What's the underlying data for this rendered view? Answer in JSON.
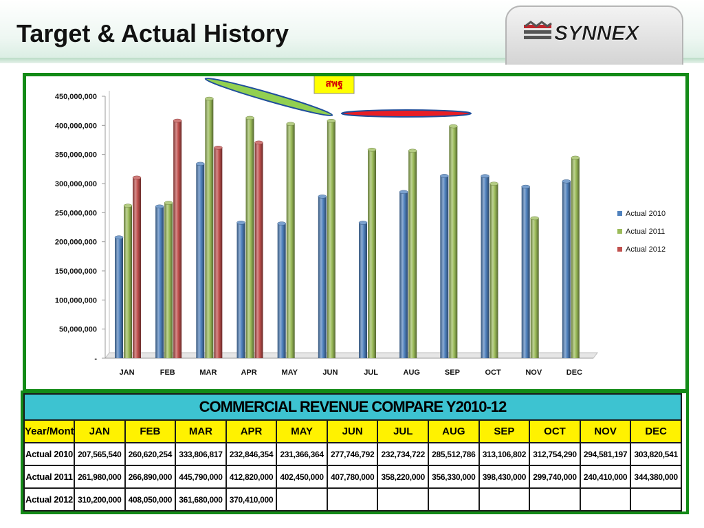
{
  "page": {
    "title": "Target & Actual History",
    "logo_text": "SYNNEX"
  },
  "chart_data": {
    "type": "bar",
    "annotation": "สพฐ",
    "categories": [
      "JAN",
      "FEB",
      "MAR",
      "APR",
      "MAY",
      "JUN",
      "JUL",
      "AUG",
      "SEP",
      "OCT",
      "NOV",
      "DEC"
    ],
    "series": [
      {
        "name": "Actual 2010",
        "color": "#4f81bd",
        "values": [
          207565540,
          260620254,
          333806817,
          232846354,
          231366364,
          277746792,
          232734722,
          285512786,
          313106802,
          312754290,
          294581197,
          303820541
        ]
      },
      {
        "name": "Actual 2011",
        "color": "#9bbb59",
        "values": [
          261980000,
          266890000,
          445790000,
          412820000,
          402450000,
          407780000,
          358220000,
          356330000,
          398430000,
          299740000,
          240410000,
          344380000
        ]
      },
      {
        "name": "Actual 2012",
        "color": "#c0504d",
        "values": [
          310200000,
          408050000,
          361680000,
          370410000,
          null,
          null,
          null,
          null,
          null,
          null,
          null,
          null
        ]
      }
    ],
    "ylim": [
      0,
      450000000
    ],
    "yticks": [
      "-",
      "50,000,000",
      "100,000,000",
      "150,000,000",
      "200,000,000",
      "250,000,000",
      "300,000,000",
      "350,000,000",
      "400,000,000",
      "450,000,000"
    ],
    "grid": false,
    "legend": "right"
  },
  "table": {
    "title": "COMMERCIAL REVENUE COMPARE Y2010-12",
    "header": [
      "Year/Month",
      "JAN",
      "FEB",
      "MAR",
      "APR",
      "MAY",
      "JUN",
      "JUL",
      "AUG",
      "SEP",
      "OCT",
      "NOV",
      "DEC"
    ],
    "rows": [
      [
        "Actual 2010",
        "207,565,540",
        "260,620,254",
        "333,806,817",
        "232,846,354",
        "231,366,364",
        "277,746,792",
        "232,734,722",
        "285,512,786",
        "313,106,802",
        "312,754,290",
        "294,581,197",
        "303,820,541"
      ],
      [
        "Actual 2011",
        "261,980,000",
        "266,890,000",
        "445,790,000",
        "412,820,000",
        "402,450,000",
        "407,780,000",
        "358,220,000",
        "356,330,000",
        "398,430,000",
        "299,740,000",
        "240,410,000",
        "344,380,000"
      ],
      [
        "Actual 2012",
        "310,200,000",
        "408,050,000",
        "361,680,000",
        "370,410,000",
        "",
        "",
        "",
        "",
        "",
        "",
        "",
        ""
      ]
    ]
  }
}
